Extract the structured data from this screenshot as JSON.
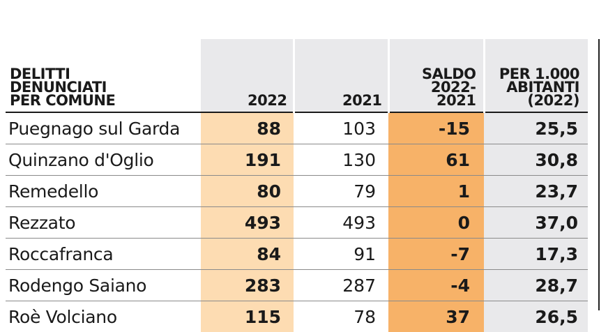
{
  "table": {
    "headers": {
      "name": [
        "DELITTI",
        "DENUNCIATI",
        "PER COMUNE"
      ],
      "y2022": "2022",
      "y2021": "2021",
      "saldo": [
        "SALDO",
        "2022-2021"
      ],
      "per": [
        "PER 1.000",
        "ABITANTI",
        "(2022)"
      ]
    },
    "rows": [
      {
        "comune": "Puegnago sul Garda",
        "v2022": "88",
        "v2021": "103",
        "saldo": "-15",
        "per": "25,5"
      },
      {
        "comune": "Quinzano d'Oglio",
        "v2022": "191",
        "v2021": "130",
        "saldo": "61",
        "per": "30,8"
      },
      {
        "comune": "Remedello",
        "v2022": "80",
        "v2021": "79",
        "saldo": "1",
        "per": "23,7"
      },
      {
        "comune": "Rezzato",
        "v2022": "493",
        "v2021": "493",
        "saldo": "0",
        "per": "37,0"
      },
      {
        "comune": "Roccafranca",
        "v2022": "84",
        "v2021": "91",
        "saldo": "-7",
        "per": "17,3"
      },
      {
        "comune": "Rodengo Saiano",
        "v2022": "283",
        "v2021": "287",
        "saldo": "-4",
        "per": "28,7"
      },
      {
        "comune": "Roè Volciano",
        "v2022": "115",
        "v2021": "78",
        "saldo": "37",
        "per": "26,5"
      }
    ],
    "colors": {
      "col_2022": "#fddcb2",
      "col_saldo": "#f7b268",
      "col_per": "#e9e9eb",
      "header_bg": "#e9e9eb"
    }
  }
}
